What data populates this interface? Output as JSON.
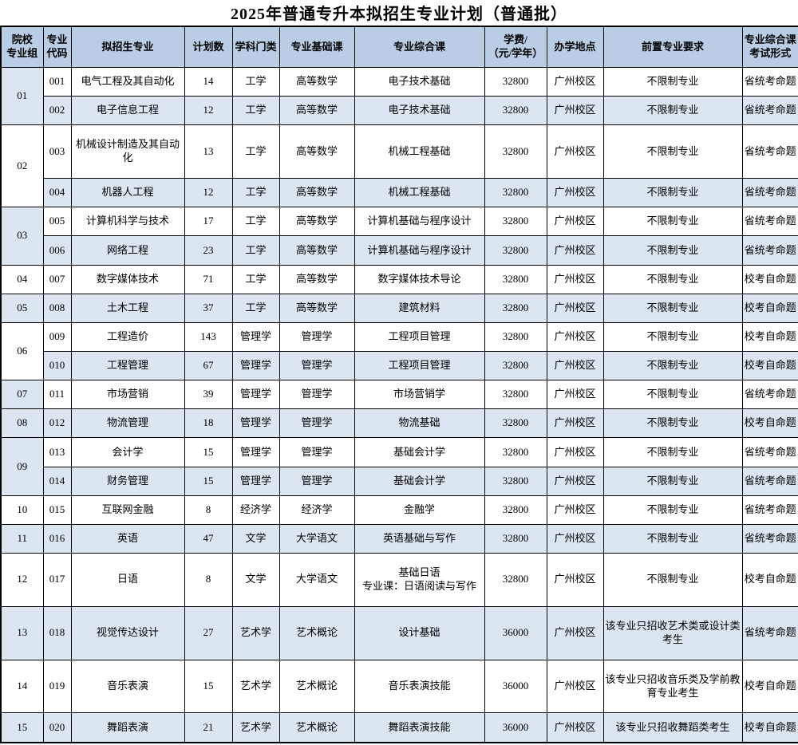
{
  "title": "2025年普通专升本拟招生专业计划（普通批）",
  "colors": {
    "header_bg": "#b9cde4",
    "stripe_bg": "#dce6f1",
    "border": "#000000"
  },
  "columns": [
    "院校\n专业组",
    "专业\n代码",
    "拟招生专业",
    "计划数",
    "学科门类",
    "专业基础课",
    "专业综合课",
    "学费/\n（元/学年）",
    "办学地点",
    "前置专业要求",
    "专业综合课\n考试形式"
  ],
  "groups": [
    {
      "group": "01",
      "rows": [
        {
          "code": "001",
          "major": "电气工程及其自动化",
          "plan": "14",
          "category": "工学",
          "basic": "高等数学",
          "comprehensive": "电子技术基础",
          "tuition": "32800",
          "location": "广州校区",
          "prereq": "不限制专业",
          "exam": "省统考命题"
        },
        {
          "code": "002",
          "major": "电子信息工程",
          "plan": "12",
          "category": "工学",
          "basic": "高等数学",
          "comprehensive": "电子技术基础",
          "tuition": "32800",
          "location": "广州校区",
          "prereq": "不限制专业",
          "exam": "省统考命题"
        }
      ]
    },
    {
      "group": "02",
      "rows": [
        {
          "code": "003",
          "major": "机械设计制造及其自动化",
          "plan": "13",
          "category": "工学",
          "basic": "高等数学",
          "comprehensive": "机械工程基础",
          "tuition": "32800",
          "location": "广州校区",
          "prereq": "不限制专业",
          "exam": "省统考命题"
        },
        {
          "code": "004",
          "major": "机器人工程",
          "plan": "12",
          "category": "工学",
          "basic": "高等数学",
          "comprehensive": "机械工程基础",
          "tuition": "32800",
          "location": "广州校区",
          "prereq": "不限制专业",
          "exam": "省统考命题"
        }
      ]
    },
    {
      "group": "03",
      "rows": [
        {
          "code": "005",
          "major": "计算机科学与技术",
          "plan": "17",
          "category": "工学",
          "basic": "高等数学",
          "comprehensive": "计算机基础与程序设计",
          "tuition": "32800",
          "location": "广州校区",
          "prereq": "不限制专业",
          "exam": "省统考命题"
        },
        {
          "code": "006",
          "major": "网络工程",
          "plan": "23",
          "category": "工学",
          "basic": "高等数学",
          "comprehensive": "计算机基础与程序设计",
          "tuition": "32800",
          "location": "广州校区",
          "prereq": "不限制专业",
          "exam": "省统考命题"
        }
      ]
    },
    {
      "group": "04",
      "rows": [
        {
          "code": "007",
          "major": "数字媒体技术",
          "plan": "71",
          "category": "工学",
          "basic": "高等数学",
          "comprehensive": "数字媒体技术导论",
          "tuition": "32800",
          "location": "广州校区",
          "prereq": "不限制专业",
          "exam": "校考自命题"
        }
      ]
    },
    {
      "group": "05",
      "rows": [
        {
          "code": "008",
          "major": "土木工程",
          "plan": "37",
          "category": "工学",
          "basic": "高等数学",
          "comprehensive": "建筑材料",
          "tuition": "32800",
          "location": "广州校区",
          "prereq": "不限制专业",
          "exam": "校考自命题"
        }
      ]
    },
    {
      "group": "06",
      "rows": [
        {
          "code": "009",
          "major": "工程造价",
          "plan": "143",
          "category": "管理学",
          "basic": "管理学",
          "comprehensive": "工程项目管理",
          "tuition": "32800",
          "location": "广州校区",
          "prereq": "不限制专业",
          "exam": "校考自命题"
        },
        {
          "code": "010",
          "major": "工程管理",
          "plan": "67",
          "category": "管理学",
          "basic": "管理学",
          "comprehensive": "工程项目管理",
          "tuition": "32800",
          "location": "广州校区",
          "prereq": "不限制专业",
          "exam": "校考自命题"
        }
      ]
    },
    {
      "group": "07",
      "rows": [
        {
          "code": "011",
          "major": "市场营销",
          "plan": "39",
          "category": "管理学",
          "basic": "管理学",
          "comprehensive": "市场营销学",
          "tuition": "32800",
          "location": "广州校区",
          "prereq": "不限制专业",
          "exam": "省统考命题"
        }
      ]
    },
    {
      "group": "08",
      "rows": [
        {
          "code": "012",
          "major": "物流管理",
          "plan": "18",
          "category": "管理学",
          "basic": "管理学",
          "comprehensive": "物流基础",
          "tuition": "32800",
          "location": "广州校区",
          "prereq": "不限制专业",
          "exam": "校考自命题"
        }
      ]
    },
    {
      "group": "09",
      "rows": [
        {
          "code": "013",
          "major": "会计学",
          "plan": "15",
          "category": "管理学",
          "basic": "管理学",
          "comprehensive": "基础会计学",
          "tuition": "32800",
          "location": "广州校区",
          "prereq": "不限制专业",
          "exam": "省统考命题"
        },
        {
          "code": "014",
          "major": "财务管理",
          "plan": "15",
          "category": "管理学",
          "basic": "管理学",
          "comprehensive": "基础会计学",
          "tuition": "32800",
          "location": "广州校区",
          "prereq": "不限制专业",
          "exam": "省统考命题"
        }
      ]
    },
    {
      "group": "10",
      "rows": [
        {
          "code": "015",
          "major": "互联网金融",
          "plan": "8",
          "category": "经济学",
          "basic": "经济学",
          "comprehensive": "金融学",
          "tuition": "32800",
          "location": "广州校区",
          "prereq": "不限制专业",
          "exam": "省统考命题"
        }
      ]
    },
    {
      "group": "11",
      "rows": [
        {
          "code": "016",
          "major": "英语",
          "plan": "47",
          "category": "文学",
          "basic": "大学语文",
          "comprehensive": "英语基础与写作",
          "tuition": "32800",
          "location": "广州校区",
          "prereq": "不限制专业",
          "exam": "省统考命题"
        }
      ]
    },
    {
      "group": "12",
      "rows": [
        {
          "code": "017",
          "major": "日语",
          "plan": "8",
          "category": "文学",
          "basic": "大学语文",
          "comprehensive": "基础日语\n专业课：日语阅读与写作",
          "tuition": "32800",
          "location": "广州校区",
          "prereq": "不限制专业",
          "exam": "校考自命题"
        }
      ]
    },
    {
      "group": "13",
      "rows": [
        {
          "code": "018",
          "major": "视觉传达设计",
          "plan": "27",
          "category": "艺术学",
          "basic": "艺术概论",
          "comprehensive": "设计基础",
          "tuition": "36000",
          "location": "广州校区",
          "prereq": "该专业只招收艺术类或设计类考生",
          "exam": "省统考命题"
        }
      ]
    },
    {
      "group": "14",
      "rows": [
        {
          "code": "019",
          "major": "音乐表演",
          "plan": "15",
          "category": "艺术学",
          "basic": "艺术概论",
          "comprehensive": "音乐表演技能",
          "tuition": "36000",
          "location": "广州校区",
          "prereq": "该专业只招收音乐类及学前教育专业考生",
          "exam": "校考自命题"
        }
      ]
    },
    {
      "group": "15",
      "rows": [
        {
          "code": "020",
          "major": "舞蹈表演",
          "plan": "21",
          "category": "艺术学",
          "basic": "艺术概论",
          "comprehensive": "舞蹈表演技能",
          "tuition": "36000",
          "location": "广州校区",
          "prereq": "该专业只招收舞蹈类考生",
          "exam": "校考自命题"
        }
      ]
    }
  ]
}
